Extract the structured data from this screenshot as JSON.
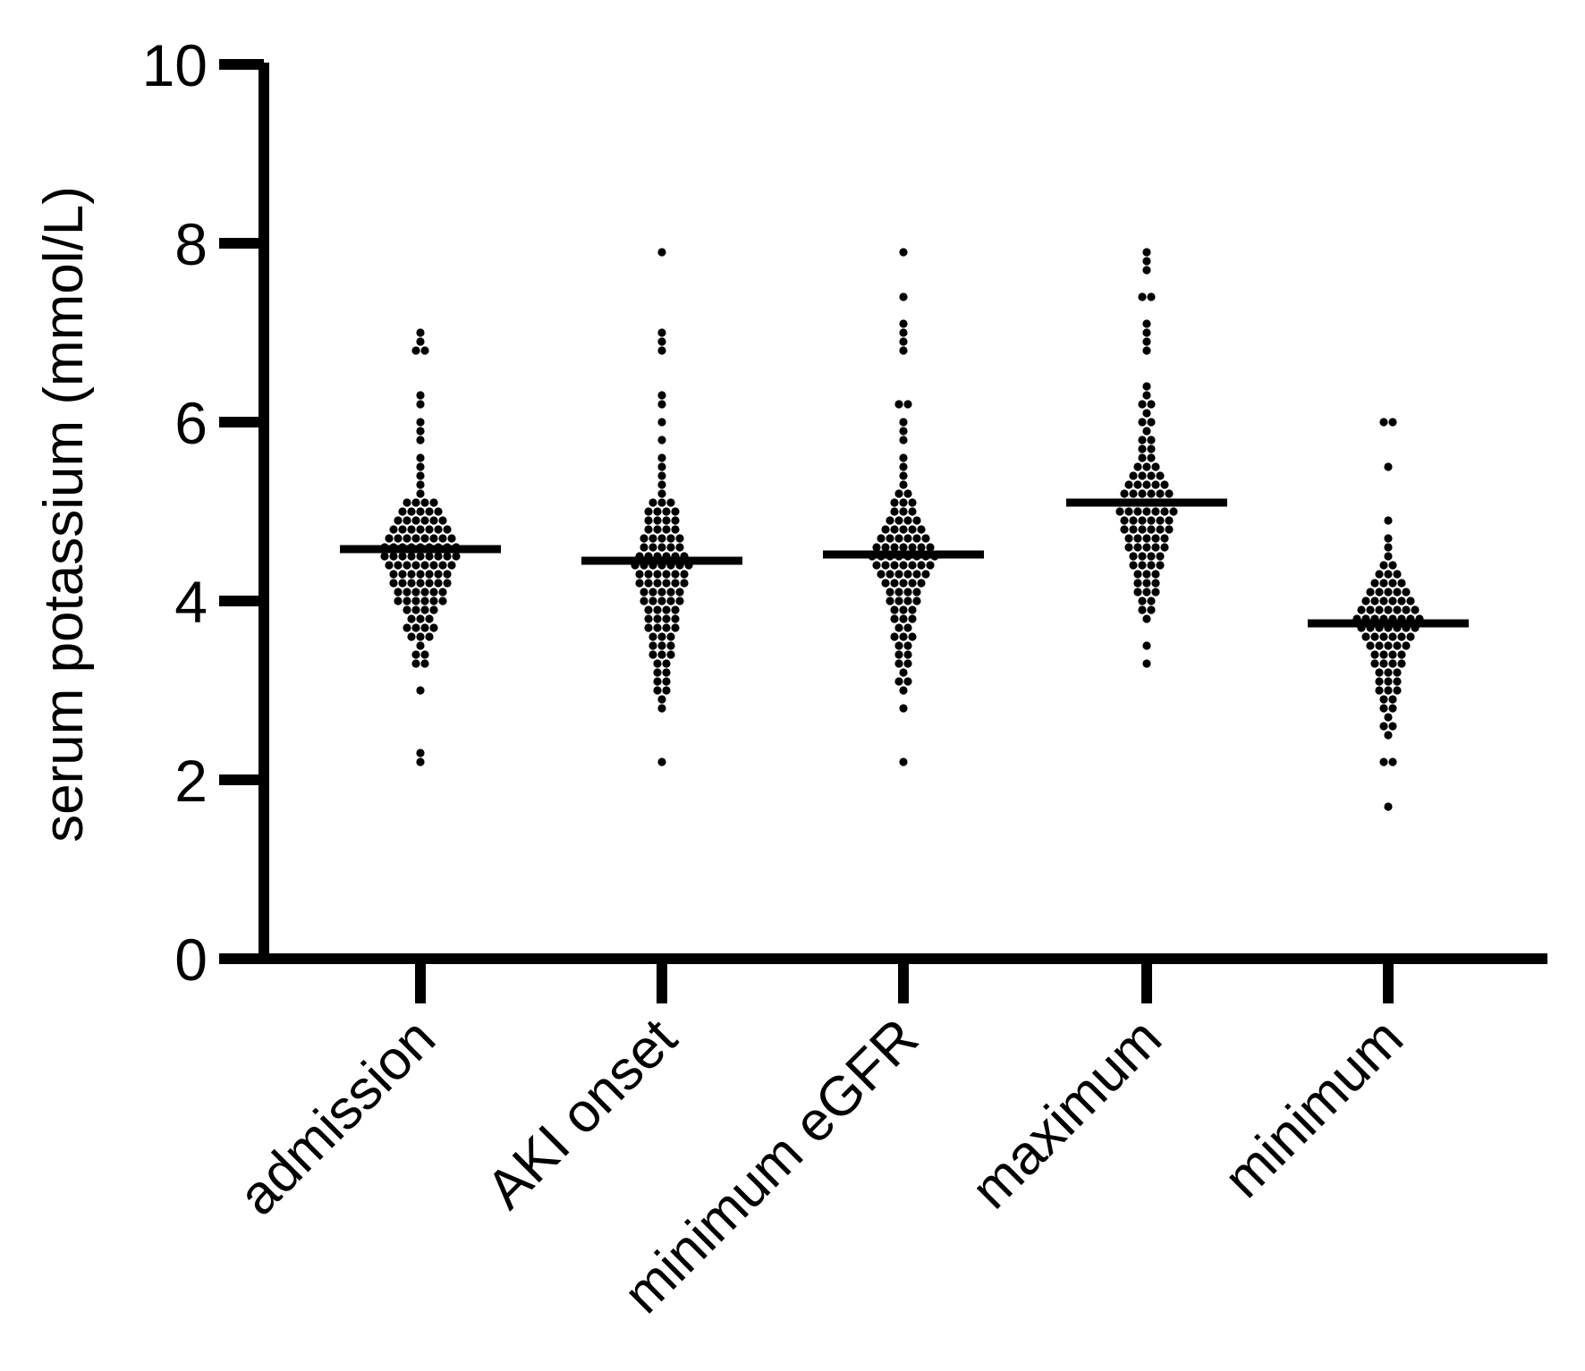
{
  "chart_data": {
    "type": "scatter",
    "subtype": "dot-plot-with-median",
    "title": "",
    "xlabel": "",
    "ylabel": "serum potassium (mmol/L)",
    "ylim": [
      0,
      10
    ],
    "yticks": [
      0,
      2,
      4,
      6,
      8,
      10
    ],
    "grid": false,
    "legend": "none",
    "colors": {
      "points": "#000000",
      "axis": "#000000",
      "median": "#000000"
    },
    "categories": [
      "admission",
      "AKI onset",
      "minimum eGFR",
      "maximum",
      "minimum"
    ],
    "series": [
      {
        "category": "admission",
        "median": 4.58,
        "values": [
          2.2,
          2.3,
          3.0,
          3.3,
          3.3,
          3.4,
          3.4,
          3.5,
          3.6,
          3.6,
          3.6,
          3.7,
          3.7,
          3.7,
          3.7,
          3.8,
          3.8,
          3.8,
          3.9,
          3.9,
          3.9,
          3.9,
          4.0,
          4.0,
          4.0,
          4.0,
          4.0,
          4.0,
          4.1,
          4.1,
          4.1,
          4.1,
          4.1,
          4.1,
          4.2,
          4.2,
          4.2,
          4.2,
          4.2,
          4.2,
          4.2,
          4.3,
          4.3,
          4.3,
          4.3,
          4.3,
          4.3,
          4.3,
          4.4,
          4.4,
          4.4,
          4.4,
          4.4,
          4.4,
          4.4,
          4.4,
          4.5,
          4.5,
          4.5,
          4.5,
          4.5,
          4.5,
          4.5,
          4.5,
          4.5,
          4.6,
          4.6,
          4.6,
          4.6,
          4.6,
          4.6,
          4.6,
          4.6,
          4.6,
          4.7,
          4.7,
          4.7,
          4.7,
          4.7,
          4.7,
          4.7,
          4.7,
          4.8,
          4.8,
          4.8,
          4.8,
          4.8,
          4.8,
          4.8,
          4.9,
          4.9,
          4.9,
          4.9,
          4.9,
          4.9,
          5.0,
          5.0,
          5.0,
          5.0,
          5.0,
          5.1,
          5.1,
          5.1,
          5.1,
          5.2,
          5.3,
          5.4,
          5.5,
          5.6,
          5.8,
          5.9,
          6.0,
          6.2,
          6.3,
          6.8,
          6.8,
          6.9,
          7.0
        ]
      },
      {
        "category": "AKI onset",
        "median": 4.45,
        "values": [
          2.2,
          2.8,
          2.9,
          3.0,
          3.0,
          3.1,
          3.1,
          3.2,
          3.2,
          3.3,
          3.3,
          3.4,
          3.4,
          3.4,
          3.5,
          3.5,
          3.5,
          3.6,
          3.6,
          3.6,
          3.7,
          3.7,
          3.7,
          3.7,
          3.8,
          3.8,
          3.8,
          3.8,
          3.9,
          3.9,
          3.9,
          3.9,
          4.0,
          4.0,
          4.0,
          4.0,
          4.0,
          4.1,
          4.1,
          4.1,
          4.1,
          4.1,
          4.2,
          4.2,
          4.2,
          4.2,
          4.2,
          4.2,
          4.3,
          4.3,
          4.3,
          4.3,
          4.3,
          4.3,
          4.4,
          4.4,
          4.4,
          4.4,
          4.4,
          4.4,
          4.4,
          4.5,
          4.5,
          4.5,
          4.5,
          4.5,
          4.5,
          4.6,
          4.6,
          4.6,
          4.6,
          4.6,
          4.7,
          4.7,
          4.7,
          4.7,
          4.7,
          4.8,
          4.8,
          4.8,
          4.8,
          4.9,
          4.9,
          4.9,
          4.9,
          5.0,
          5.0,
          5.0,
          5.0,
          5.1,
          5.1,
          5.1,
          5.2,
          5.3,
          5.4,
          5.5,
          5.6,
          5.8,
          6.0,
          6.2,
          6.3,
          6.8,
          6.9,
          7.0,
          7.9
        ]
      },
      {
        "category": "minimum eGFR",
        "median": 4.52,
        "values": [
          2.2,
          2.8,
          3.0,
          3.1,
          3.1,
          3.2,
          3.3,
          3.3,
          3.4,
          3.4,
          3.5,
          3.5,
          3.6,
          3.6,
          3.6,
          3.7,
          3.7,
          3.8,
          3.8,
          3.8,
          3.9,
          3.9,
          3.9,
          4.0,
          4.0,
          4.0,
          4.0,
          4.1,
          4.1,
          4.1,
          4.1,
          4.2,
          4.2,
          4.2,
          4.2,
          4.2,
          4.3,
          4.3,
          4.3,
          4.3,
          4.3,
          4.3,
          4.4,
          4.4,
          4.4,
          4.4,
          4.4,
          4.4,
          4.4,
          4.5,
          4.5,
          4.5,
          4.5,
          4.5,
          4.5,
          4.5,
          4.5,
          4.6,
          4.6,
          4.6,
          4.6,
          4.6,
          4.6,
          4.6,
          4.7,
          4.7,
          4.7,
          4.7,
          4.7,
          4.7,
          4.8,
          4.8,
          4.8,
          4.8,
          4.8,
          4.9,
          4.9,
          4.9,
          4.9,
          5.0,
          5.0,
          5.0,
          5.1,
          5.1,
          5.1,
          5.2,
          5.2,
          5.3,
          5.4,
          5.5,
          5.6,
          5.8,
          5.9,
          6.0,
          6.2,
          6.2,
          6.8,
          6.9,
          7.0,
          7.1,
          7.4,
          7.9
        ]
      },
      {
        "category": "maximum",
        "median": 5.1,
        "values": [
          3.3,
          3.5,
          3.8,
          3.9,
          3.9,
          4.0,
          4.0,
          4.1,
          4.1,
          4.1,
          4.2,
          4.2,
          4.2,
          4.3,
          4.3,
          4.3,
          4.4,
          4.4,
          4.4,
          4.4,
          4.5,
          4.5,
          4.5,
          4.5,
          4.6,
          4.6,
          4.6,
          4.6,
          4.6,
          4.7,
          4.7,
          4.7,
          4.7,
          4.7,
          4.8,
          4.8,
          4.8,
          4.8,
          4.8,
          4.8,
          4.9,
          4.9,
          4.9,
          4.9,
          4.9,
          4.9,
          5.0,
          5.0,
          5.0,
          5.0,
          5.0,
          5.0,
          5.0,
          5.1,
          5.1,
          5.1,
          5.1,
          5.1,
          5.1,
          5.1,
          5.2,
          5.2,
          5.2,
          5.2,
          5.2,
          5.2,
          5.3,
          5.3,
          5.3,
          5.3,
          5.3,
          5.4,
          5.4,
          5.4,
          5.4,
          5.5,
          5.5,
          5.5,
          5.6,
          5.6,
          5.7,
          5.7,
          5.8,
          5.8,
          5.9,
          6.0,
          6.0,
          6.1,
          6.2,
          6.2,
          6.3,
          6.4,
          6.8,
          6.9,
          7.0,
          7.1,
          7.4,
          7.4,
          7.7,
          7.8,
          7.9
        ]
      },
      {
        "category": "minimum",
        "median": 3.75,
        "values": [
          1.7,
          2.2,
          2.2,
          2.5,
          2.6,
          2.6,
          2.7,
          2.8,
          2.8,
          2.9,
          2.9,
          3.0,
          3.0,
          3.0,
          3.1,
          3.1,
          3.1,
          3.2,
          3.2,
          3.2,
          3.3,
          3.3,
          3.3,
          3.3,
          3.4,
          3.4,
          3.4,
          3.4,
          3.5,
          3.5,
          3.5,
          3.5,
          3.5,
          3.6,
          3.6,
          3.6,
          3.6,
          3.6,
          3.6,
          3.7,
          3.7,
          3.7,
          3.7,
          3.7,
          3.7,
          3.7,
          3.8,
          3.8,
          3.8,
          3.8,
          3.8,
          3.8,
          3.8,
          3.8,
          3.9,
          3.9,
          3.9,
          3.9,
          3.9,
          3.9,
          3.9,
          4.0,
          4.0,
          4.0,
          4.0,
          4.0,
          4.0,
          4.1,
          4.1,
          4.1,
          4.1,
          4.1,
          4.2,
          4.2,
          4.2,
          4.2,
          4.3,
          4.3,
          4.3,
          4.4,
          4.4,
          4.5,
          4.6,
          4.7,
          4.9,
          5.5,
          6.0,
          6.0
        ]
      }
    ]
  }
}
